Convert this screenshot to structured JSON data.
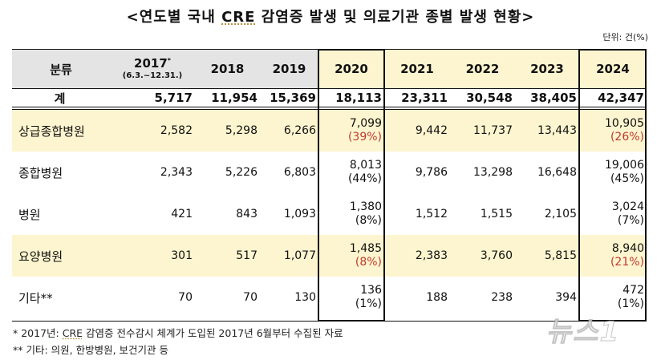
{
  "title": {
    "prefix": "<연도별 국내 ",
    "cre": "CRE",
    "suffix": " 감염증 발생 및 의료기관 종별 발생 현황>"
  },
  "unit": "단위: 건(%)",
  "table": {
    "header": {
      "category": "분류",
      "years": [
        {
          "year": "2017",
          "mark": "*",
          "sub": "(6.3.~12.31.)"
        },
        {
          "year": "2018"
        },
        {
          "year": "2019"
        },
        {
          "year": "2020"
        },
        {
          "year": "2021"
        },
        {
          "year": "2022"
        },
        {
          "year": "2023"
        },
        {
          "year": "2024"
        }
      ]
    },
    "total": {
      "label": "계",
      "values": [
        "5,717",
        "11,954",
        "15,369",
        "18,113",
        "23,311",
        "30,548",
        "38,405",
        "42,347"
      ]
    },
    "rows": [
      {
        "label": "상급종합병원",
        "highlight": true,
        "values": [
          "2,582",
          "5,298",
          "6,266",
          "7,099",
          "9,442",
          "11,737",
          "13,443",
          "10,905"
        ],
        "pct_2020": "(39%)",
        "pct_2024": "(26%)",
        "pct_red": true
      },
      {
        "label": "종합병원",
        "highlight": false,
        "values": [
          "2,343",
          "5,226",
          "6,803",
          "8,013",
          "9,786",
          "13,298",
          "16,648",
          "19,006"
        ],
        "pct_2020": "(44%)",
        "pct_2024": "(45%)",
        "pct_red": false
      },
      {
        "label": "병원",
        "highlight": false,
        "values": [
          "421",
          "843",
          "1,093",
          "1,380",
          "1,512",
          "1,515",
          "2,105",
          "3,024"
        ],
        "pct_2020": "(8%)",
        "pct_2024": "(7%)",
        "pct_red": false
      },
      {
        "label": "요양병원",
        "highlight": true,
        "values": [
          "301",
          "517",
          "1,077",
          "1,485",
          "2,383",
          "3,760",
          "5,815",
          "8,940"
        ],
        "pct_2020": "(8%)",
        "pct_2024": "(21%)",
        "pct_red": true
      },
      {
        "label": "기타**",
        "highlight": false,
        "values": [
          "70",
          "70",
          "130",
          "136",
          "188",
          "238",
          "394",
          "472"
        ],
        "pct_2020": "(1%)",
        "pct_2024": "(1%)",
        "pct_red": false
      }
    ]
  },
  "notes": [
    {
      "prefix": "* 2017년: ",
      "cre": "CRE",
      "suffix": " 감염증 전수감시 체계가 도입된 2017년 6월부터 수집된 자료"
    },
    {
      "text": "** 기타: 의원, 한방병원, 보건기관 등"
    }
  ],
  "watermark": "뉴스1",
  "colors": {
    "header_gray": "#e4e4e4",
    "highlight_yellow": "#fdf5cf",
    "percent_red": "#c0392b"
  }
}
